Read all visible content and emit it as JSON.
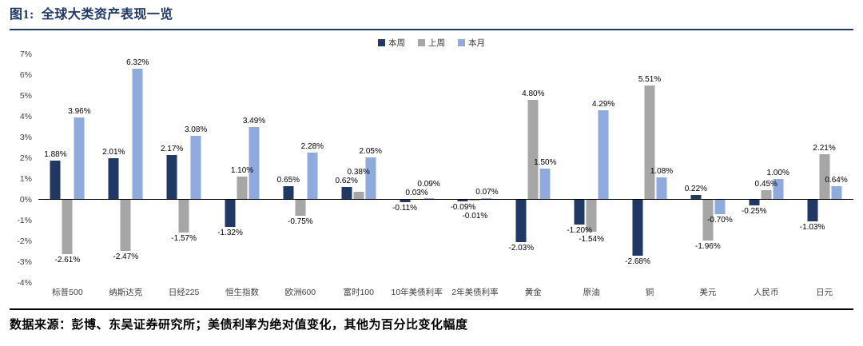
{
  "figure": {
    "title": "图1:  全球大类资产表现一览",
    "source_note": "数据来源：彭博、东吴证券研究所；美债利率为绝对值变化，其他为百分比变化幅度"
  },
  "chart_data": {
    "type": "bar",
    "title": "全球大类资产表现一览",
    "categories": [
      "标普500",
      "纳斯达克",
      "日经225",
      "恒生指数",
      "欧洲600",
      "富时100",
      "10年美债利率",
      "2年美债利率",
      "黄金",
      "原油",
      "铜",
      "美元",
      "人民币",
      "日元"
    ],
    "series": [
      {
        "name": "本周",
        "key": "this-week",
        "color": "#1F3864",
        "values": [
          1.88,
          2.01,
          2.17,
          -1.32,
          0.65,
          0.62,
          -0.11,
          -0.09,
          -2.03,
          -1.2,
          -2.68,
          0.22,
          -0.25,
          -1.03
        ]
      },
      {
        "name": "上周",
        "key": "last-week",
        "color": "#A6A6A6",
        "values": [
          -2.61,
          -2.47,
          -1.57,
          1.1,
          -0.75,
          0.38,
          0.03,
          -0.01,
          4.8,
          -1.54,
          5.51,
          -1.96,
          0.45,
          2.21
        ]
      },
      {
        "name": "本月",
        "key": "this-month",
        "color": "#8FAADC",
        "values": [
          3.96,
          6.32,
          3.08,
          3.49,
          2.28,
          2.05,
          0.09,
          0.07,
          1.5,
          4.29,
          1.08,
          -0.7,
          1.0,
          0.64
        ]
      }
    ],
    "ylim": [
      -4,
      7
    ],
    "ytick_step": 1,
    "ytick_labels": [
      "7%",
      "6%",
      "5%",
      "4%",
      "3%",
      "2%",
      "1%",
      "0%",
      "-1%",
      "-2%",
      "-3%",
      "-4%"
    ],
    "value_suffix": "%",
    "legend_position": "top",
    "grid": false
  }
}
